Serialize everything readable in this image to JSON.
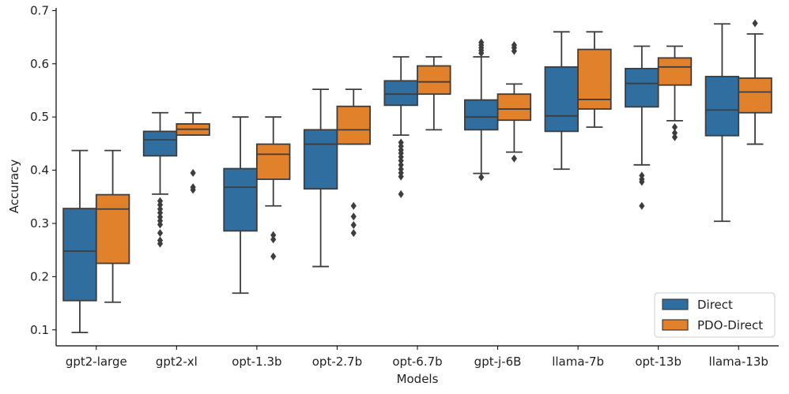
{
  "chart_data": {
    "type": "boxplot",
    "title": "",
    "xlabel": "Models",
    "ylabel": "Accuracy",
    "ylim": [
      0.07,
      0.705
    ],
    "yticks": [
      0.1,
      0.2,
      0.3,
      0.4,
      0.5,
      0.6,
      0.7
    ],
    "ytick_labels": [
      "0.1",
      "0.2",
      "0.3",
      "0.4",
      "0.5",
      "0.6",
      "0.7"
    ],
    "categories": [
      "gpt2-large",
      "gpt2-xl",
      "opt-1.3b",
      "opt-2.7b",
      "opt-6.7b",
      "gpt-j-6B",
      "llama-7b",
      "opt-13b",
      "llama-13b"
    ],
    "legend_position": "bottom-right",
    "series": [
      {
        "name": "Direct",
        "color": "#2f6e9e",
        "boxes": [
          {
            "whislo": 0.095,
            "q1": 0.155,
            "med": 0.248,
            "q3": 0.328,
            "whishi": 0.437,
            "fliers": []
          },
          {
            "whislo": 0.355,
            "q1": 0.427,
            "med": 0.457,
            "q3": 0.473,
            "whishi": 0.508,
            "fliers": [
              0.262,
              0.268,
              0.282,
              0.298,
              0.305,
              0.312,
              0.32,
              0.327,
              0.335,
              0.342
            ]
          },
          {
            "whislo": 0.169,
            "q1": 0.286,
            "med": 0.368,
            "q3": 0.403,
            "whishi": 0.5,
            "fliers": []
          },
          {
            "whislo": 0.219,
            "q1": 0.365,
            "med": 0.449,
            "q3": 0.476,
            "whishi": 0.552,
            "fliers": []
          },
          {
            "whislo": 0.466,
            "q1": 0.522,
            "med": 0.543,
            "q3": 0.568,
            "whishi": 0.613,
            "fliers": [
              0.355,
              0.388,
              0.395,
              0.402,
              0.41,
              0.418,
              0.425,
              0.432,
              0.438,
              0.445,
              0.452
            ]
          },
          {
            "whislo": 0.394,
            "q1": 0.476,
            "med": 0.5,
            "q3": 0.532,
            "whishi": 0.613,
            "fliers": [
              0.387,
              0.62,
              0.625,
              0.63,
              0.635,
              0.64
            ]
          },
          {
            "whislo": 0.402,
            "q1": 0.473,
            "med": 0.502,
            "q3": 0.594,
            "whishi": 0.66,
            "fliers": []
          },
          {
            "whislo": 0.41,
            "q1": 0.519,
            "med": 0.563,
            "q3": 0.591,
            "whishi": 0.633,
            "fliers": [
              0.333,
              0.378,
              0.383,
              0.39
            ]
          },
          {
            "whislo": 0.304,
            "q1": 0.465,
            "med": 0.513,
            "q3": 0.576,
            "whishi": 0.675,
            "fliers": []
          }
        ]
      },
      {
        "name": "PDO-Direct",
        "color": "#e1812c",
        "boxes": [
          {
            "whislo": 0.152,
            "q1": 0.225,
            "med": 0.327,
            "q3": 0.354,
            "whishi": 0.437,
            "fliers": []
          },
          {
            "whislo": 0.466,
            "q1": 0.466,
            "med": 0.477,
            "q3": 0.487,
            "whishi": 0.508,
            "fliers": [
              0.363,
              0.368,
              0.395
            ]
          },
          {
            "whislo": 0.333,
            "q1": 0.383,
            "med": 0.43,
            "q3": 0.449,
            "whishi": 0.5,
            "fliers": [
              0.238,
              0.27,
              0.278
            ]
          },
          {
            "whislo": 0.449,
            "q1": 0.449,
            "med": 0.476,
            "q3": 0.52,
            "whishi": 0.552,
            "fliers": [
              0.282,
              0.297,
              0.313,
              0.333
            ]
          },
          {
            "whislo": 0.476,
            "q1": 0.543,
            "med": 0.566,
            "q3": 0.596,
            "whishi": 0.613,
            "fliers": []
          },
          {
            "whislo": 0.434,
            "q1": 0.494,
            "med": 0.515,
            "q3": 0.543,
            "whishi": 0.562,
            "fliers": [
              0.422,
              0.624,
              0.63,
              0.635
            ]
          },
          {
            "whislo": 0.481,
            "q1": 0.515,
            "med": 0.533,
            "q3": 0.627,
            "whishi": 0.66,
            "fliers": []
          },
          {
            "whislo": 0.493,
            "q1": 0.56,
            "med": 0.594,
            "q3": 0.611,
            "whishi": 0.633,
            "fliers": [
              0.462,
              0.47,
              0.481
            ]
          },
          {
            "whislo": 0.449,
            "q1": 0.508,
            "med": 0.547,
            "q3": 0.573,
            "whishi": 0.656,
            "fliers": [
              0.676
            ]
          }
        ]
      }
    ]
  }
}
